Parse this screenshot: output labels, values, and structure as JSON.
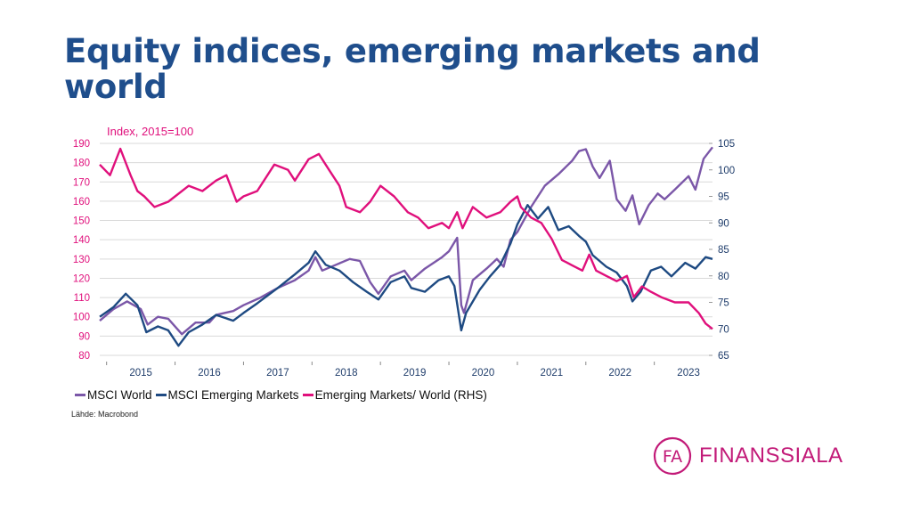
{
  "slide": {
    "title": "Equity indices, emerging markets and world"
  },
  "chart_data": {
    "type": "line",
    "unit_label": "Index, 2015=100",
    "x_start": 2014.9,
    "x_end": 2023.85,
    "x_ticks": [
      "2015",
      "2016",
      "2017",
      "2018",
      "2019",
      "2020",
      "2021",
      "2022",
      "2023"
    ],
    "ylim_left": [
      80,
      190
    ],
    "yticks_left": [
      "80",
      "90",
      "100",
      "110",
      "120",
      "130",
      "140",
      "150",
      "160",
      "170",
      "180",
      "190"
    ],
    "ylim_right": [
      65,
      105
    ],
    "yticks_right": [
      "65",
      "70",
      "75",
      "80",
      "85",
      "90",
      "95",
      "100",
      "105"
    ],
    "series": [
      {
        "name": "MSCI World",
        "axis": "left",
        "color": "#7b57a8",
        "points": [
          [
            2014.9,
            98
          ],
          [
            2015.1,
            104
          ],
          [
            2015.3,
            108
          ],
          [
            2015.5,
            104
          ],
          [
            2015.6,
            96
          ],
          [
            2015.75,
            100
          ],
          [
            2015.9,
            99
          ],
          [
            2016.1,
            91
          ],
          [
            2016.3,
            97
          ],
          [
            2016.5,
            97
          ],
          [
            2016.6,
            101
          ],
          [
            2016.85,
            103
          ],
          [
            2017.0,
            106
          ],
          [
            2017.25,
            110
          ],
          [
            2017.5,
            115
          ],
          [
            2017.75,
            119
          ],
          [
            2017.95,
            124
          ],
          [
            2018.05,
            131
          ],
          [
            2018.15,
            124
          ],
          [
            2018.35,
            127
          ],
          [
            2018.55,
            130
          ],
          [
            2018.7,
            129
          ],
          [
            2018.85,
            118
          ],
          [
            2018.97,
            112
          ],
          [
            2019.15,
            121
          ],
          [
            2019.35,
            124
          ],
          [
            2019.45,
            119
          ],
          [
            2019.65,
            125
          ],
          [
            2019.9,
            131
          ],
          [
            2020.0,
            134
          ],
          [
            2020.12,
            141
          ],
          [
            2020.18,
            106
          ],
          [
            2020.22,
            102
          ],
          [
            2020.35,
            119
          ],
          [
            2020.55,
            125
          ],
          [
            2020.7,
            130
          ],
          [
            2020.8,
            126
          ],
          [
            2020.9,
            140
          ],
          [
            2021.0,
            144
          ],
          [
            2021.2,
            157
          ],
          [
            2021.4,
            168
          ],
          [
            2021.6,
            174
          ],
          [
            2021.8,
            181
          ],
          [
            2021.9,
            186
          ],
          [
            2022.0,
            187
          ],
          [
            2022.1,
            178
          ],
          [
            2022.2,
            172
          ],
          [
            2022.35,
            181
          ],
          [
            2022.45,
            161
          ],
          [
            2022.58,
            155
          ],
          [
            2022.68,
            163
          ],
          [
            2022.78,
            148
          ],
          [
            2022.92,
            158
          ],
          [
            2023.05,
            164
          ],
          [
            2023.15,
            161
          ],
          [
            2023.3,
            166
          ],
          [
            2023.5,
            173
          ],
          [
            2023.6,
            166
          ],
          [
            2023.72,
            182
          ],
          [
            2023.85,
            188
          ]
        ]
      },
      {
        "name": "MSCI Emerging Markets",
        "axis": "left",
        "color": "#1e4a82",
        "points": [
          [
            2014.9,
            100
          ],
          [
            2015.1,
            105
          ],
          [
            2015.28,
            112
          ],
          [
            2015.45,
            106
          ],
          [
            2015.58,
            92
          ],
          [
            2015.75,
            95
          ],
          [
            2015.9,
            93
          ],
          [
            2016.05,
            85
          ],
          [
            2016.2,
            92
          ],
          [
            2016.4,
            96
          ],
          [
            2016.6,
            101
          ],
          [
            2016.85,
            98
          ],
          [
            2017.0,
            102
          ],
          [
            2017.2,
            107
          ],
          [
            2017.5,
            115
          ],
          [
            2017.75,
            122
          ],
          [
            2017.95,
            128
          ],
          [
            2018.05,
            134
          ],
          [
            2018.2,
            127
          ],
          [
            2018.4,
            124
          ],
          [
            2018.6,
            118
          ],
          [
            2018.8,
            113
          ],
          [
            2018.97,
            109
          ],
          [
            2019.15,
            118
          ],
          [
            2019.35,
            121
          ],
          [
            2019.45,
            115
          ],
          [
            2019.65,
            113
          ],
          [
            2019.85,
            119
          ],
          [
            2020.0,
            121
          ],
          [
            2020.08,
            116
          ],
          [
            2020.18,
            93
          ],
          [
            2020.25,
            102
          ],
          [
            2020.45,
            114
          ],
          [
            2020.6,
            121
          ],
          [
            2020.75,
            127
          ],
          [
            2020.9,
            138
          ],
          [
            2021.0,
            148
          ],
          [
            2021.15,
            158
          ],
          [
            2021.3,
            151
          ],
          [
            2021.45,
            157
          ],
          [
            2021.6,
            145
          ],
          [
            2021.75,
            147
          ],
          [
            2021.9,
            142
          ],
          [
            2022.0,
            139
          ],
          [
            2022.1,
            132
          ],
          [
            2022.3,
            126
          ],
          [
            2022.45,
            123
          ],
          [
            2022.6,
            116
          ],
          [
            2022.68,
            108
          ],
          [
            2022.8,
            113
          ],
          [
            2022.95,
            124
          ],
          [
            2023.1,
            126
          ],
          [
            2023.25,
            121
          ],
          [
            2023.45,
            128
          ],
          [
            2023.6,
            125
          ],
          [
            2023.75,
            131
          ],
          [
            2023.85,
            130
          ]
        ]
      },
      {
        "name": "Emerging Markets/ World (RHS)",
        "axis": "right",
        "color": "#e0107c",
        "points": [
          [
            2014.9,
            101
          ],
          [
            2015.05,
            99
          ],
          [
            2015.2,
            104
          ],
          [
            2015.35,
            99
          ],
          [
            2015.45,
            96
          ],
          [
            2015.55,
            95
          ],
          [
            2015.7,
            93
          ],
          [
            2015.9,
            94
          ],
          [
            2016.0,
            95
          ],
          [
            2016.2,
            97
          ],
          [
            2016.4,
            96
          ],
          [
            2016.6,
            98
          ],
          [
            2016.75,
            99
          ],
          [
            2016.9,
            94
          ],
          [
            2017.0,
            95
          ],
          [
            2017.2,
            96
          ],
          [
            2017.45,
            101
          ],
          [
            2017.65,
            100
          ],
          [
            2017.75,
            98
          ],
          [
            2017.95,
            102
          ],
          [
            2018.1,
            103
          ],
          [
            2018.25,
            100
          ],
          [
            2018.4,
            97
          ],
          [
            2018.5,
            93
          ],
          [
            2018.7,
            92
          ],
          [
            2018.85,
            94
          ],
          [
            2019.0,
            97
          ],
          [
            2019.2,
            95
          ],
          [
            2019.4,
            92
          ],
          [
            2019.55,
            91
          ],
          [
            2019.7,
            89
          ],
          [
            2019.9,
            90
          ],
          [
            2020.0,
            89
          ],
          [
            2020.12,
            92
          ],
          [
            2020.2,
            89
          ],
          [
            2020.35,
            93
          ],
          [
            2020.55,
            91
          ],
          [
            2020.75,
            92
          ],
          [
            2020.9,
            94
          ],
          [
            2021.0,
            95
          ],
          [
            2021.05,
            93
          ],
          [
            2021.2,
            91
          ],
          [
            2021.35,
            90
          ],
          [
            2021.5,
            87
          ],
          [
            2021.65,
            83
          ],
          [
            2021.8,
            82
          ],
          [
            2021.95,
            81
          ],
          [
            2022.05,
            84
          ],
          [
            2022.15,
            81
          ],
          [
            2022.3,
            80
          ],
          [
            2022.45,
            79
          ],
          [
            2022.6,
            80
          ],
          [
            2022.7,
            76
          ],
          [
            2022.82,
            78
          ],
          [
            2022.95,
            77
          ],
          [
            2023.1,
            76
          ],
          [
            2023.3,
            75
          ],
          [
            2023.5,
            75
          ],
          [
            2023.65,
            73
          ],
          [
            2023.75,
            71
          ],
          [
            2023.85,
            70
          ]
        ]
      }
    ],
    "legend_position": "bottom"
  },
  "source": "Lähde: Macrobond",
  "logo": {
    "mark": "FA",
    "text": "FINANSSIALA"
  }
}
